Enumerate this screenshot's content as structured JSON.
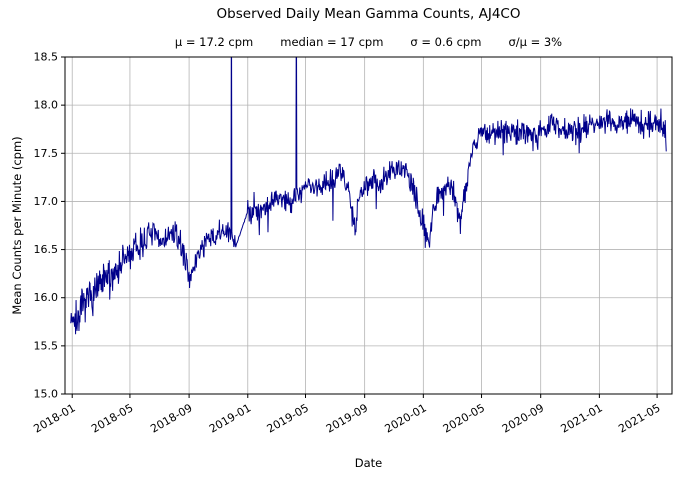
{
  "chart_data": {
    "type": "line",
    "title": "Observed Daily Mean Gamma Counts, AJ4CO",
    "stats": {
      "mu": "μ = 17.2 cpm",
      "median": "median = 17 cpm",
      "sigma": "σ = 0.6 cpm",
      "sigma_over_mu": "σ/μ = 3%"
    },
    "xlabel": "Date",
    "ylabel": "Mean Counts per Minute (cpm)",
    "xlim": [
      "2017-12-17",
      "2021-06-01"
    ],
    "ylim": [
      15.0,
      18.5
    ],
    "y_ticks": [
      15.0,
      15.5,
      16.0,
      16.5,
      17.0,
      17.5,
      18.0,
      18.5
    ],
    "x_ticks": [
      "2018-01",
      "2018-05",
      "2018-09",
      "2019-01",
      "2019-05",
      "2019-09",
      "2020-01",
      "2020-05",
      "2020-09",
      "2021-01",
      "2021-05"
    ],
    "line_color": "#00008b",
    "grid_color": "#b4b4b4",
    "grid": true,
    "legend": "none",
    "series_start": "2017-12-29",
    "series_end": "2021-05-20",
    "trend_anchors": [
      [
        "2017-12-29",
        15.82
      ],
      [
        "2018-01-10",
        15.78
      ],
      [
        "2018-01-25",
        15.9
      ],
      [
        "2018-02-10",
        16.02
      ],
      [
        "2018-02-25",
        16.1
      ],
      [
        "2018-03-15",
        16.2
      ],
      [
        "2018-04-05",
        16.3
      ],
      [
        "2018-04-25",
        16.42
      ],
      [
        "2018-05-15",
        16.5
      ],
      [
        "2018-06-01",
        16.6
      ],
      [
        "2018-06-15",
        16.68
      ],
      [
        "2018-07-01",
        16.58
      ],
      [
        "2018-07-15",
        16.62
      ],
      [
        "2018-08-01",
        16.67
      ],
      [
        "2018-08-15",
        16.55
      ],
      [
        "2018-08-28",
        16.32
      ],
      [
        "2018-09-08",
        16.2
      ],
      [
        "2018-09-18",
        16.45
      ],
      [
        "2018-10-01",
        16.55
      ],
      [
        "2018-10-15",
        16.6
      ],
      [
        "2018-11-01",
        16.65
      ],
      [
        "2018-11-15",
        16.7
      ],
      [
        "2018-12-01",
        16.6
      ],
      [
        "2018-12-08",
        16.55
      ],
      [
        "2018-12-31",
        16.88
      ],
      [
        "2019-01-15",
        16.95
      ],
      [
        "2019-02-01",
        16.92
      ],
      [
        "2019-02-20",
        17.0
      ],
      [
        "2019-03-10",
        17.05
      ],
      [
        "2019-03-25",
        17.0
      ],
      [
        "2019-04-10",
        17.05
      ],
      [
        "2019-04-25",
        17.12
      ],
      [
        "2019-05-10",
        17.18
      ],
      [
        "2019-05-25",
        17.12
      ],
      [
        "2019-06-10",
        17.2
      ],
      [
        "2019-06-25",
        17.25
      ],
      [
        "2019-07-10",
        17.3
      ],
      [
        "2019-07-25",
        17.2
      ],
      [
        "2019-08-05",
        16.95
      ],
      [
        "2019-08-12",
        16.72
      ],
      [
        "2019-08-20",
        17.05
      ],
      [
        "2019-09-05",
        17.2
      ],
      [
        "2019-09-20",
        17.25
      ],
      [
        "2019-10-05",
        17.15
      ],
      [
        "2019-10-20",
        17.3
      ],
      [
        "2019-11-05",
        17.3
      ],
      [
        "2019-11-20",
        17.38
      ],
      [
        "2019-12-05",
        17.2
      ],
      [
        "2019-12-20",
        16.95
      ],
      [
        "2020-01-05",
        16.7
      ],
      [
        "2020-01-12",
        16.58
      ],
      [
        "2020-01-22",
        16.95
      ],
      [
        "2020-02-05",
        17.1
      ],
      [
        "2020-02-20",
        17.18
      ],
      [
        "2020-03-05",
        17.1
      ],
      [
        "2020-03-17",
        16.78
      ],
      [
        "2020-03-26",
        17.05
      ],
      [
        "2020-04-06",
        17.4
      ],
      [
        "2020-04-16",
        17.6
      ],
      [
        "2020-04-26",
        17.7
      ],
      [
        "2020-05-10",
        17.72
      ],
      [
        "2020-06-01",
        17.7
      ],
      [
        "2020-06-20",
        17.74
      ],
      [
        "2020-07-10",
        17.7
      ],
      [
        "2020-08-01",
        17.73
      ],
      [
        "2020-08-20",
        17.7
      ],
      [
        "2020-09-10",
        17.75
      ],
      [
        "2020-10-01",
        17.8
      ],
      [
        "2020-10-20",
        17.75
      ],
      [
        "2020-11-10",
        17.72
      ],
      [
        "2020-12-01",
        17.78
      ],
      [
        "2020-12-20",
        17.82
      ],
      [
        "2021-01-10",
        17.85
      ],
      [
        "2021-02-01",
        17.78
      ],
      [
        "2021-02-20",
        17.82
      ],
      [
        "2021-03-10",
        17.85
      ],
      [
        "2021-04-01",
        17.8
      ],
      [
        "2021-04-20",
        17.82
      ],
      [
        "2021-05-10",
        17.8
      ],
      [
        "2021-05-20",
        17.7
      ]
    ],
    "spikes": [
      [
        "2018-11-28",
        19.4
      ],
      [
        "2019-04-12",
        19.4
      ]
    ],
    "outliers": [
      [
        "2018-01-08",
        15.62
      ],
      [
        "2018-03-20",
        15.98
      ],
      [
        "2019-01-25",
        16.65
      ],
      [
        "2019-02-12",
        16.68
      ],
      [
        "2019-06-27",
        16.8
      ],
      [
        "2019-09-25",
        16.92
      ],
      [
        "2020-02-12",
        16.85
      ],
      [
        "2020-06-15",
        17.48
      ],
      [
        "2020-11-20",
        17.5
      ],
      [
        "2021-05-20",
        17.52
      ]
    ],
    "smooth_segments": [
      [
        "2018-12-08",
        "2018-12-31"
      ]
    ],
    "noise": {
      "sd": 0.065,
      "sd_early": 0.095,
      "early_until": "2018-06-01",
      "seed": 7
    }
  }
}
